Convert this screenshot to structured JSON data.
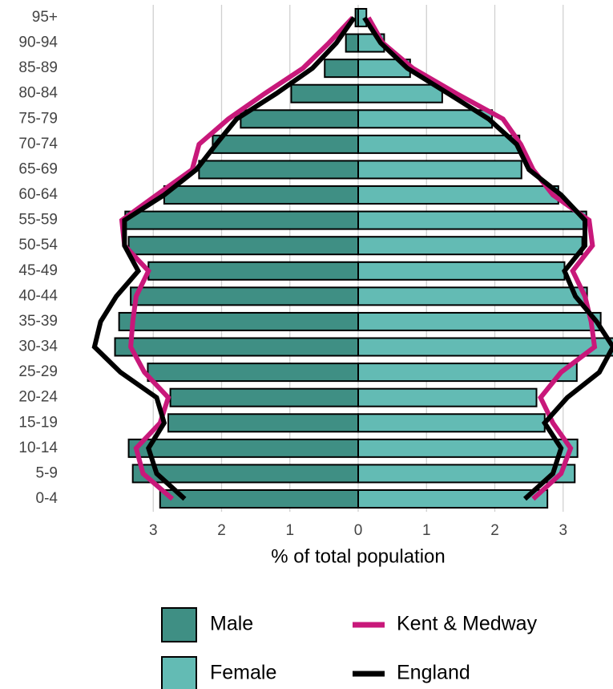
{
  "chart_data": {
    "type": "population-pyramid",
    "x_label": "% of total population",
    "categories": [
      "0-4",
      "5-9",
      "10-14",
      "15-19",
      "20-24",
      "25-29",
      "30-34",
      "35-39",
      "40-44",
      "45-49",
      "50-54",
      "55-59",
      "60-64",
      "65-69",
      "70-74",
      "75-79",
      "80-84",
      "85-89",
      "90-94",
      "95+"
    ],
    "xlim": [
      -4,
      3.73
    ],
    "xticks": [
      {
        "value": -3,
        "label": "3"
      },
      {
        "value": -2,
        "label": "2"
      },
      {
        "value": -1,
        "label": "1"
      },
      0,
      1,
      2,
      3
    ],
    "grid": true,
    "series": [
      {
        "name": "Male",
        "color": "#3f8f84",
        "side": "left",
        "values": [
          2.9,
          3.3,
          3.36,
          2.78,
          2.75,
          3.08,
          3.56,
          3.5,
          3.33,
          3.07,
          3.36,
          3.41,
          2.84,
          2.33,
          2.13,
          1.72,
          0.98,
          0.49,
          0.18,
          0.04
        ]
      },
      {
        "name": "Female",
        "color": "#63bbb4",
        "side": "right",
        "values": [
          2.77,
          3.17,
          3.21,
          2.73,
          2.61,
          3.2,
          3.75,
          3.55,
          3.35,
          3.02,
          3.28,
          3.34,
          2.93,
          2.39,
          2.36,
          1.96,
          1.23,
          0.76,
          0.38,
          0.12
        ]
      },
      {
        "name": "Kent & Medway",
        "color": "#c8187a",
        "male": [
          2.72,
          3.15,
          3.25,
          2.9,
          2.78,
          3.13,
          3.33,
          3.3,
          3.25,
          3.07,
          3.42,
          3.46,
          2.95,
          2.43,
          2.33,
          1.9,
          1.37,
          0.81,
          0.43,
          0.08
        ],
        "female": [
          2.56,
          2.97,
          3.11,
          2.85,
          2.67,
          2.97,
          3.46,
          3.41,
          3.32,
          3.14,
          3.43,
          3.38,
          2.85,
          2.56,
          2.38,
          2.12,
          1.44,
          0.8,
          0.36,
          0.15
        ]
      },
      {
        "name": "England",
        "color": "#000000",
        "male": [
          2.54,
          2.95,
          3.07,
          2.84,
          2.95,
          3.48,
          3.86,
          3.77,
          3.54,
          3.22,
          3.42,
          3.42,
          2.84,
          2.37,
          2.08,
          1.78,
          1.2,
          0.67,
          0.32,
          0.06
        ],
        "female": [
          2.44,
          2.85,
          2.97,
          2.73,
          3.06,
          3.53,
          3.73,
          3.49,
          3.18,
          3.02,
          3.32,
          3.32,
          2.97,
          2.5,
          2.32,
          1.91,
          1.32,
          0.72,
          0.33,
          0.09
        ]
      }
    ]
  }
}
